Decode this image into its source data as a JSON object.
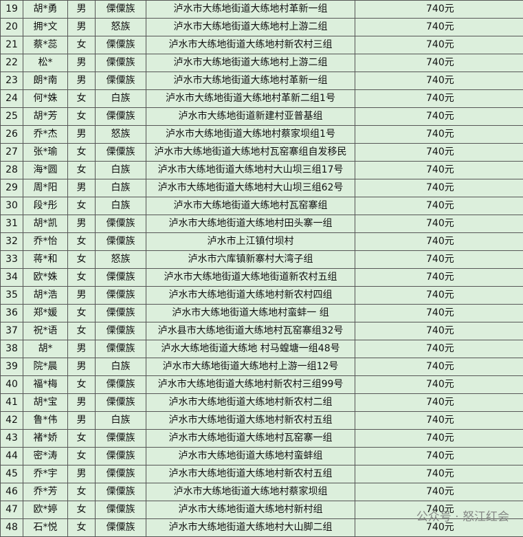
{
  "table": {
    "rows": [
      [
        "19",
        "胡*勇",
        "男",
        "傈僳族",
        "泸水市大练地街道大练地村革新一组",
        "740元"
      ],
      [
        "20",
        "拥*文",
        "男",
        "怒族",
        "泸水市大练地街道大练地村上游二组",
        "740元"
      ],
      [
        "21",
        "蔡*蕊",
        "女",
        "傈僳族",
        "泸水市大练地街道大练地村新农村三组",
        "740元"
      ],
      [
        "22",
        "松*",
        "男",
        "傈僳族",
        "泸水市大练地街道大练地村上游二组",
        "740元"
      ],
      [
        "23",
        "朗*南",
        "男",
        "傈僳族",
        "泸水市大练地街道大练地村革新一组",
        "740元"
      ],
      [
        "24",
        "何*姝",
        "女",
        "白族",
        "泸水市大练地街道大练地村革新二组1号",
        "740元"
      ],
      [
        "25",
        "胡*芳",
        "女",
        "傈僳族",
        "泸水市大练地街道新建村亚普基组",
        "740元"
      ],
      [
        "26",
        "乔*杰",
        "男",
        "怒族",
        "泸水市大练地街道大练地村蔡家坝组1号",
        "740元"
      ],
      [
        "27",
        "张*瑜",
        "女",
        "傈僳族",
        "泸水市大练地街道大练地村瓦窑寨组自发移民",
        "740元"
      ],
      [
        "28",
        "海*圆",
        "女",
        "白族",
        "泸水市大练地街道大练地村大山坝三组17号",
        "740元"
      ],
      [
        "29",
        "周*阳",
        "男",
        "白族",
        "泸水市大练地街道大练地村大山坝三组62号",
        "740元"
      ],
      [
        "30",
        "段*彤",
        "女",
        "白族",
        "泸水市大练地街道大练地村瓦窑寨组",
        "740元"
      ],
      [
        "31",
        "胡*凯",
        "男",
        "傈僳族",
        "泸水市大练地街道大练地村田头寨一组",
        "740元"
      ],
      [
        "32",
        "乔*怡",
        "女",
        "傈僳族",
        "泸水市上江镇付坝村",
        "740元"
      ],
      [
        "33",
        "蒋*和",
        "女",
        "怒族",
        "泸水市六库镇新寨村大湾子组",
        "740元"
      ],
      [
        "34",
        "欧*姝",
        "女",
        "傈僳族",
        "泸水市大练地街道大练地街道新农村五组",
        "740元"
      ],
      [
        "35",
        "胡*浩",
        "男",
        "傈僳族",
        "泸水市大练地街道大练地村新农村四组",
        "740元"
      ],
      [
        "36",
        "郑*媛",
        "女",
        "傈僳族",
        "泸水市大练地街道大练地村蛮蚌一 组",
        "740元"
      ],
      [
        "37",
        "祝*语",
        "女",
        "傈僳族",
        "泸水县市大练地街道大练地村瓦窑寨组32号",
        "740元"
      ],
      [
        "38",
        "胡*",
        "男",
        "傈僳族",
        "泸水大练地街道大练地 村马蝗塘一组48号",
        "740元"
      ],
      [
        "39",
        "院*晨",
        "男",
        "白族",
        "泸水市大练地街道大练地村上游一组12号",
        "740元"
      ],
      [
        "40",
        "福*梅",
        "女",
        "傈僳族",
        "泸水市大练地街道大练地村新农村三组99号",
        "740元"
      ],
      [
        "41",
        "胡*宝",
        "男",
        "傈僳族",
        "泸水市大练地街道大练地村新农村二组",
        "740元"
      ],
      [
        "42",
        "鲁*伟",
        "男",
        "白族",
        "泸水市大练地街道大练地村新农村五组",
        "740元"
      ],
      [
        "43",
        "褚*娇",
        "女",
        "傈僳族",
        "泸水市大练地街道大练地村瓦窑寨一组",
        "740元"
      ],
      [
        "44",
        "密*涛",
        "女",
        "傈僳族",
        "泸水市大练地街道大练地村蛮蚌组",
        "740元"
      ],
      [
        "45",
        "乔*宇",
        "男",
        "傈僳族",
        "泸水市大练地街道大练地村新农村五组",
        "740元"
      ],
      [
        "46",
        "乔*芳",
        "女",
        "傈僳族",
        "泸水市大练地街道大练地村蔡家坝组",
        "740元"
      ],
      [
        "47",
        "欧*婷",
        "女",
        "傈僳族",
        "泸水市大练地街道大练地村新村组",
        "740元"
      ],
      [
        "48",
        "石*悦",
        "女",
        "傈僳族",
        "泸水市大练地街道大练地村大山脚二组",
        "740元"
      ]
    ]
  },
  "watermark": "公众号 · 怒江红会"
}
